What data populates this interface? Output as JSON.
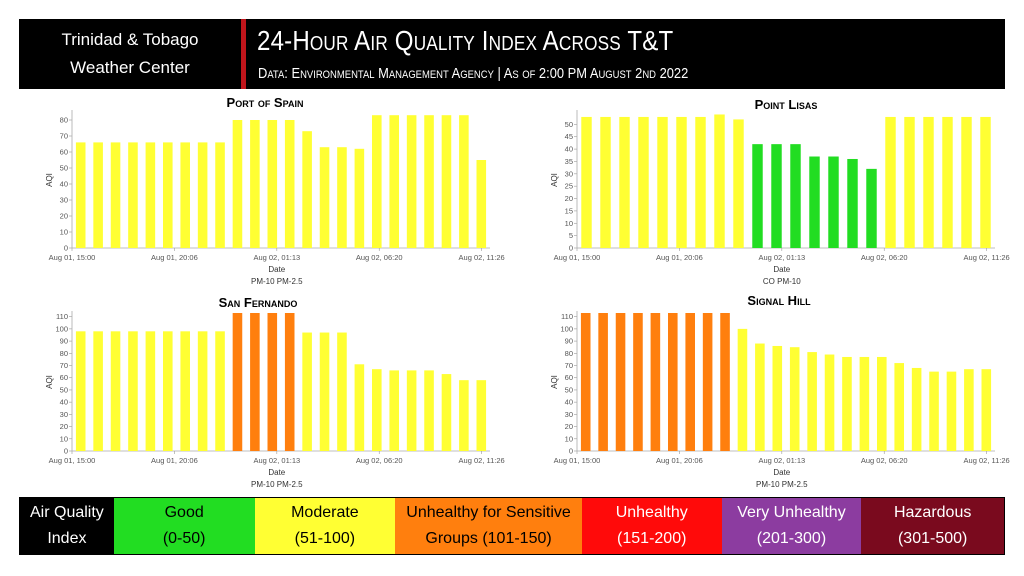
{
  "header": {
    "brand_line1": "Trinidad & Tobago",
    "brand_line2": "Weather Center",
    "title": "24-Hour Air Quality Index Across T&T",
    "subtitle": "Data: Environmental Management Agency | As of 2:00 PM August 2nd 2022"
  },
  "colors": {
    "moderate": "#ffff33",
    "good": "#22dd22",
    "usg": "#ff7f0e",
    "accent_red": "#c0151b"
  },
  "chart_data": [
    {
      "type": "bar",
      "title": "Port of Spain",
      "xlabel": "Date",
      "ylabel": "AQI",
      "ylim": [
        0,
        85
      ],
      "yticks": [
        0,
        10,
        20,
        30,
        40,
        50,
        60,
        70,
        80
      ],
      "xtick_labels": [
        "Aug 01, 15:00",
        "Aug 01, 20:06",
        "Aug 02, 01:13",
        "Aug 02, 06:20",
        "Aug 02, 11:26"
      ],
      "legend": [
        "PM-10",
        "PM-2.5"
      ],
      "values": [
        66,
        66,
        66,
        66,
        66,
        66,
        66,
        66,
        66,
        80,
        80,
        80,
        80,
        73,
        63,
        63,
        62,
        83,
        83,
        83,
        83,
        83,
        83,
        55
      ],
      "bar_categories": [
        "moderate",
        "moderate",
        "moderate",
        "moderate",
        "moderate",
        "moderate",
        "moderate",
        "moderate",
        "moderate",
        "moderate",
        "moderate",
        "moderate",
        "moderate",
        "moderate",
        "moderate",
        "moderate",
        "moderate",
        "moderate",
        "moderate",
        "moderate",
        "moderate",
        "moderate",
        "moderate",
        "moderate"
      ]
    },
    {
      "type": "bar",
      "title": "Point Lisas",
      "xlabel": "Date",
      "ylabel": "AQI",
      "ylim": [
        0,
        55
      ],
      "yticks": [
        0,
        5,
        10,
        15,
        20,
        25,
        30,
        35,
        40,
        45,
        50
      ],
      "ytick_labels": [
        "0",
        "5",
        "10",
        "15",
        "20",
        "25",
        "30",
        "35",
        "40",
        "45",
        "50"
      ],
      "xtick_labels": [
        "Aug 01, 15:00",
        "Aug 01, 20:06",
        "Aug 02, 01:13",
        "Aug 02, 06:20",
        "Aug 02, 11:26"
      ],
      "legend": [
        "CO",
        "PM-10"
      ],
      "values": [
        53,
        53,
        53,
        53,
        53,
        53,
        53,
        54,
        52,
        42,
        42,
        42,
        37,
        37,
        36,
        32,
        53,
        53,
        53,
        53,
        53,
        53
      ],
      "bar_categories": [
        "moderate",
        "moderate",
        "moderate",
        "moderate",
        "moderate",
        "moderate",
        "moderate",
        "moderate",
        "moderate",
        "good",
        "good",
        "good",
        "good",
        "good",
        "good",
        "good",
        "moderate",
        "moderate",
        "moderate",
        "moderate",
        "moderate",
        "moderate"
      ]
    },
    {
      "type": "bar",
      "title": "San Fernando",
      "xlabel": "Date",
      "ylabel": "AQI",
      "ylim": [
        0,
        113
      ],
      "yticks": [
        0,
        10,
        20,
        30,
        40,
        50,
        60,
        70,
        80,
        90,
        100,
        110
      ],
      "xtick_labels": [
        "Aug 01, 15:00",
        "Aug 01, 20:06",
        "Aug 02, 01:13",
        "Aug 02, 06:20",
        "Aug 02, 11:26"
      ],
      "legend": [
        "PM-10",
        "PM-2.5"
      ],
      "values": [
        98,
        98,
        98,
        98,
        98,
        98,
        98,
        98,
        98,
        113,
        113,
        113,
        113,
        97,
        97,
        97,
        71,
        67,
        66,
        66,
        66,
        63,
        58,
        58
      ],
      "bar_categories": [
        "moderate",
        "moderate",
        "moderate",
        "moderate",
        "moderate",
        "moderate",
        "moderate",
        "moderate",
        "moderate",
        "usg",
        "usg",
        "usg",
        "usg",
        "moderate",
        "moderate",
        "moderate",
        "moderate",
        "moderate",
        "moderate",
        "moderate",
        "moderate",
        "moderate",
        "moderate",
        "moderate"
      ]
    },
    {
      "type": "bar",
      "title": "Signal Hill",
      "xlabel": "Date",
      "ylabel": "AQI",
      "ylim": [
        0,
        113
      ],
      "yticks": [
        0,
        10,
        20,
        30,
        40,
        50,
        60,
        70,
        80,
        90,
        100,
        110
      ],
      "xtick_labels": [
        "Aug 01, 15:00",
        "Aug 01, 20:06",
        "Aug 02, 01:13",
        "Aug 02, 06:20",
        "Aug 02, 11:26"
      ],
      "legend": [
        "PM-10",
        "PM-2.5"
      ],
      "values": [
        113,
        113,
        113,
        113,
        113,
        113,
        113,
        113,
        113,
        100,
        88,
        86,
        85,
        81,
        79,
        77,
        77,
        77,
        72,
        68,
        65,
        65,
        67,
        67
      ],
      "bar_categories": [
        "usg",
        "usg",
        "usg",
        "usg",
        "usg",
        "usg",
        "usg",
        "usg",
        "usg",
        "moderate",
        "moderate",
        "moderate",
        "moderate",
        "moderate",
        "moderate",
        "moderate",
        "moderate",
        "moderate",
        "moderate",
        "moderate",
        "moderate",
        "moderate",
        "moderate",
        "moderate"
      ]
    }
  ],
  "aqi_legend": [
    {
      "line1": "Air Quality",
      "line2": "Index",
      "bg": "#000000",
      "fg": "#ffffff"
    },
    {
      "line1": "Good",
      "line2": "(0-50)",
      "bg": "#22dd22",
      "fg": "#000000"
    },
    {
      "line1": "Moderate",
      "line2": "(51-100)",
      "bg": "#ffff33",
      "fg": "#000000"
    },
    {
      "line1": "Unhealthy for Sensitive",
      "line2": "Groups (101-150)",
      "bg": "#ff7f0e",
      "fg": "#000000"
    },
    {
      "line1": "Unhealthy",
      "line2": "(151-200)",
      "bg": "#ff0a0a",
      "fg": "#ffffff"
    },
    {
      "line1": "Very Unhealthy",
      "line2": "(201-300)",
      "bg": "#8c3ca0",
      "fg": "#ffffff"
    },
    {
      "line1": "Hazardous",
      "line2": "(301-500)",
      "bg": "#7a0a1e",
      "fg": "#ffffff"
    }
  ]
}
